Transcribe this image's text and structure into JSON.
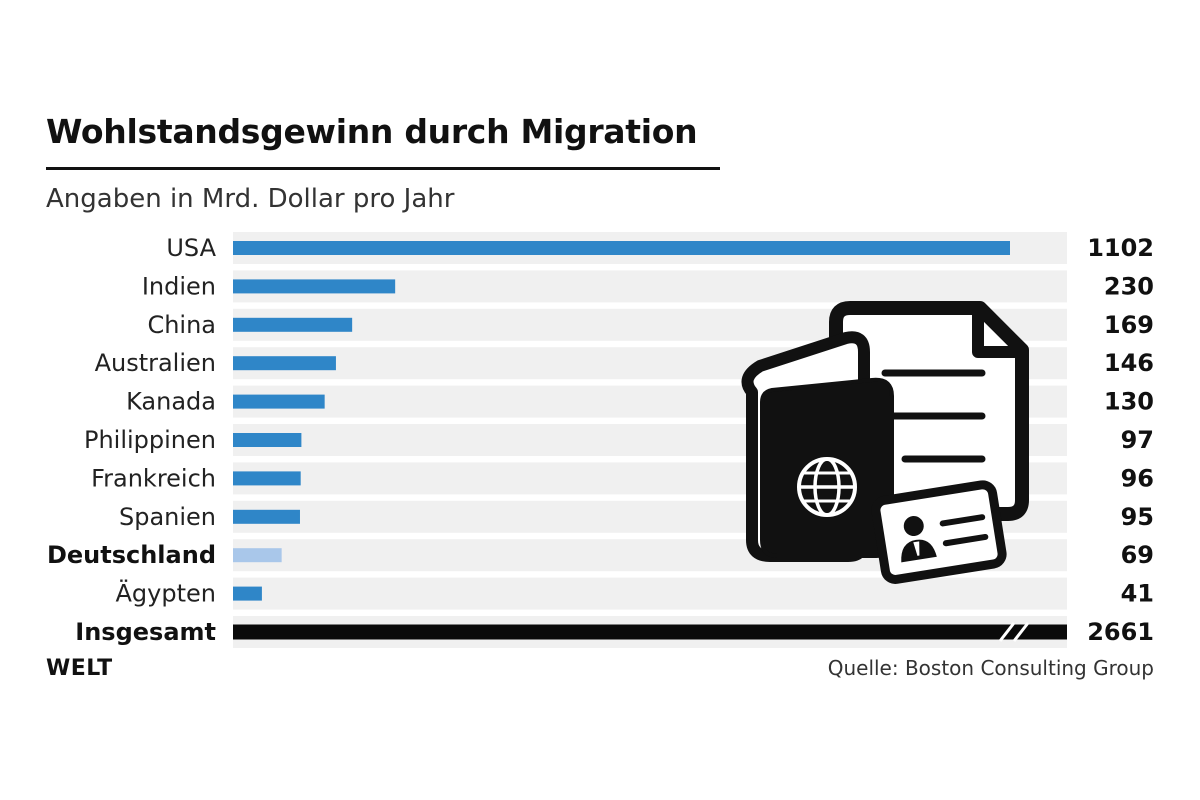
{
  "header": {
    "title": "Wohlstandsgewinn durch Migration",
    "subtitle": "Angaben in Mrd. Dollar pro Jahr"
  },
  "footer": {
    "source": "Quelle: Boston Consulting Group",
    "logo": "WELT"
  },
  "colors": {
    "bar": "#2f86c8",
    "highlight_bar": "#a9c7ea",
    "total_bar": "#0a0a0a",
    "track": "#f0f0f0",
    "text": "#111111"
  },
  "icon": "passport-documents-id-card-icon",
  "chart_data": {
    "type": "bar",
    "orientation": "horizontal",
    "title": "Wohlstandsgewinn durch Migration",
    "subtitle": "Angaben in Mrd. Dollar pro Jahr",
    "xlim": [
      0,
      1200
    ],
    "categories": [
      "USA",
      "Indien",
      "China",
      "Australien",
      "Kanada",
      "Philippinen",
      "Frankreich",
      "Spanien",
      "Deutschland",
      "Ägypten",
      "Insgesamt"
    ],
    "values": [
      1102,
      230,
      169,
      146,
      130,
      97,
      96,
      95,
      69,
      41,
      2661
    ],
    "highlighted": [
      "Deutschland"
    ],
    "total_category": "Insgesamt",
    "total_axis_break": true,
    "data_labels": [
      "1102",
      "230",
      "169",
      "146",
      "130",
      "97",
      "96",
      "95",
      "69",
      "41",
      "2661"
    ],
    "grid": false,
    "legend": "none"
  }
}
